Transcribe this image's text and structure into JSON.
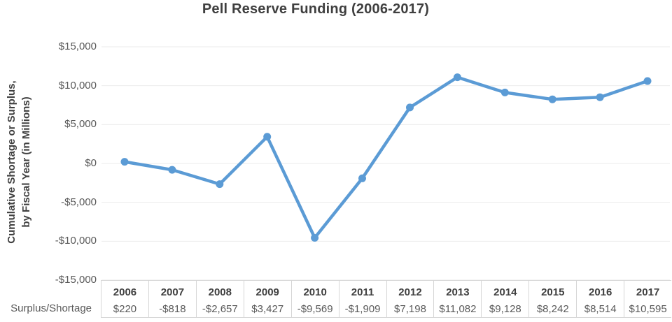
{
  "title": "Pell Reserve Funding (2006-2017)",
  "y_axis": {
    "label_line1": "Cumulative Shortage or Surplus,",
    "label_line2": "by Fiscal Year (in Millions)",
    "ticks": [
      {
        "label": "$15,000",
        "value": 15000
      },
      {
        "label": "$10,000",
        "value": 10000
      },
      {
        "label": "$5,000",
        "value": 5000
      },
      {
        "label": "$0",
        "value": 0
      },
      {
        "label": "-$5,000",
        "value": -5000
      },
      {
        "label": "-$10,000",
        "value": -10000
      },
      {
        "label": "-$15,000",
        "value": -15000
      }
    ]
  },
  "table": {
    "row_label": "Surplus/Shortage",
    "years": [
      "2006",
      "2007",
      "2008",
      "2009",
      "2010",
      "2011",
      "2012",
      "2013",
      "2014",
      "2015",
      "2016",
      "2017"
    ],
    "values": [
      "$220",
      "-$818",
      "-$2,657",
      "$3,427",
      "-$9,569",
      "-$1,909",
      "$7,198",
      "$11,082",
      "$9,128",
      "$8,242",
      "$8,514",
      "$10,595"
    ]
  },
  "chart_data": {
    "type": "line",
    "title": "Pell Reserve Funding (2006-2017)",
    "xlabel": "",
    "ylabel": "Cumulative Shortage or Surplus, by Fiscal Year (in Millions)",
    "series_name": "Surplus/Shortage",
    "categories": [
      "2006",
      "2007",
      "2008",
      "2009",
      "2010",
      "2011",
      "2012",
      "2013",
      "2014",
      "2015",
      "2016",
      "2017"
    ],
    "values": [
      220,
      -818,
      -2657,
      3427,
      -9569,
      -1909,
      7198,
      11082,
      9128,
      8242,
      8514,
      10595
    ],
    "ylim": [
      -15000,
      15000
    ],
    "y_tick_step": 5000,
    "grid": "horizontal",
    "legend": "none"
  },
  "colors": {
    "line": "#5B9BD5",
    "marker": "#5B9BD5",
    "grid": "#ebebeb",
    "border": "#d6d6d6",
    "heading_text": "#3f3f3f",
    "tick_text": "#595959"
  }
}
